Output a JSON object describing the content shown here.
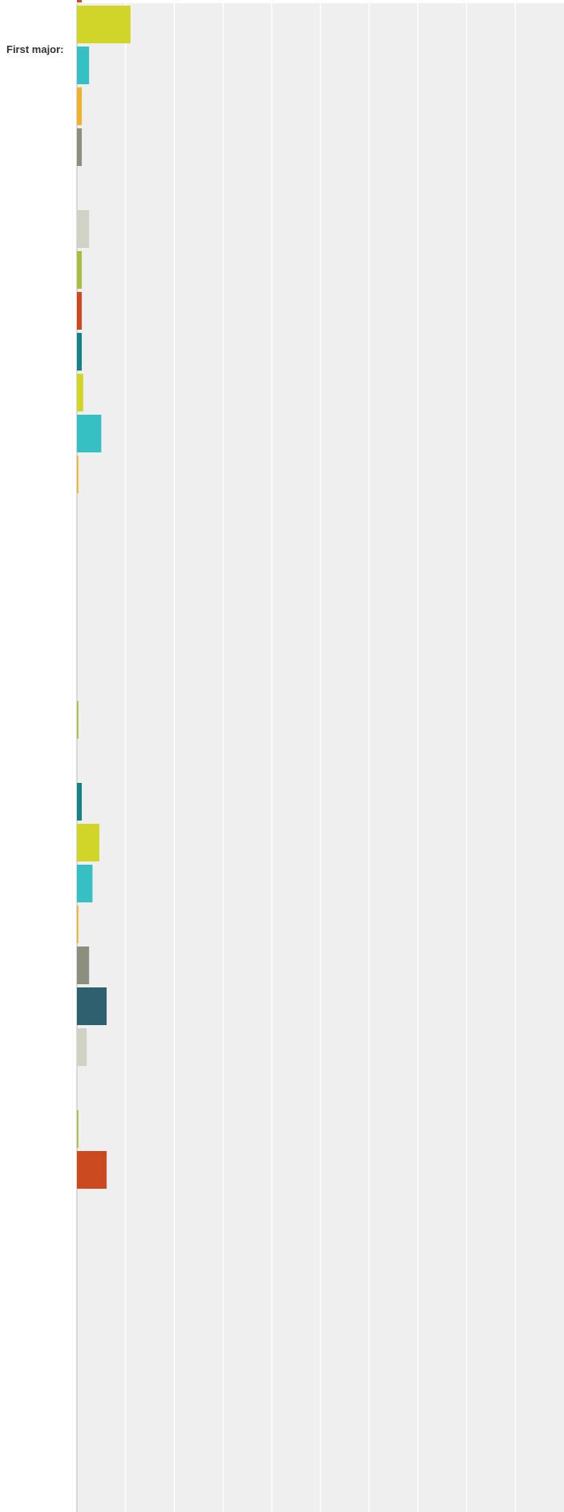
{
  "chart_data": {
    "type": "bar",
    "orientation": "horizontal",
    "row_label": "First major:",
    "grid": true,
    "xlim": [
      0,
      100
    ],
    "series_colors": [
      "#CC4A1F",
      "#D1D52A",
      "#37C0C4",
      "#F0B12C",
      "#8C8F7E",
      "#2E6070",
      "#D0D2C5",
      "#A8BE40",
      "#168187"
    ],
    "bars": [
      {
        "color": "#CC4A1F",
        "value": 1
      },
      {
        "color": "#D1D52A",
        "value": 11
      },
      {
        "color": "#37C0C4",
        "value": 2.5
      },
      {
        "color": "#F0B12C",
        "value": 1
      },
      {
        "color": "#8C8F7E",
        "value": 1
      },
      {
        "color": "#2E6070",
        "value": 0
      },
      {
        "color": "#D0D2C5",
        "value": 2.5
      },
      {
        "color": "#A8BE40",
        "value": 1
      },
      {
        "color": "#CC4A1F",
        "value": 1
      },
      {
        "color": "#168187",
        "value": 1
      },
      {
        "color": "#D1D52A",
        "value": 1.3
      },
      {
        "color": "#37C0C4",
        "value": 5
      },
      {
        "color": "#F0B12C",
        "value": 0.3
      },
      {
        "color": "#8C8F7E",
        "value": 0
      },
      {
        "color": "#2E6070",
        "value": 0
      },
      {
        "color": "#D0D2C5",
        "value": 0
      },
      {
        "color": "#A8BE40",
        "value": 0
      },
      {
        "color": "#CC4A1F",
        "value": 0
      },
      {
        "color": "#A8BE40",
        "value": 0.3
      },
      {
        "color": "#CC4A1F",
        "value": 0
      },
      {
        "color": "#168187",
        "value": 1
      },
      {
        "color": "#D1D52A",
        "value": 4.6
      },
      {
        "color": "#37C0C4",
        "value": 3.2
      },
      {
        "color": "#F0B12C",
        "value": 0.3
      },
      {
        "color": "#8C8F7E",
        "value": 2.5
      },
      {
        "color": "#2E6070",
        "value": 6.1
      },
      {
        "color": "#D0D2C5",
        "value": 2
      },
      {
        "color": "#A8BE40",
        "value": 0
      },
      {
        "color": "#A8BE40",
        "value": 0.3
      },
      {
        "color": "#CC4A1F",
        "value": 6.1
      },
      {
        "color": "#168187",
        "value": 0
      },
      {
        "color": "#D1D52A",
        "value": 0
      },
      {
        "color": "#37C0C4",
        "value": 0
      },
      {
        "color": "#F0B12C",
        "value": 0
      },
      {
        "color": "#8C8F7E",
        "value": 0
      },
      {
        "color": "#2E6070",
        "value": 0
      },
      {
        "color": "#D0D2C5",
        "value": 0
      }
    ]
  }
}
